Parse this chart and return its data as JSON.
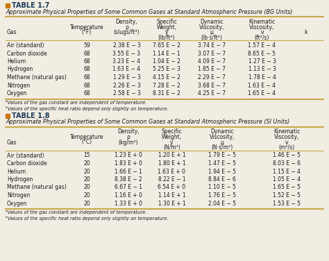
{
  "table17": {
    "title_tag": "TABLE 1.7",
    "subtitle": "Approximate Physical Properties of Some Common Gases at Standard Atmospheric Pressure (BG Units)",
    "col_headers_line1": [
      "",
      "",
      "Density,",
      "Specific",
      "Dynamic",
      "Kinematic",
      ""
    ],
    "col_headers_line2": [
      "",
      "Temperature",
      "ρ",
      "Weight,",
      "Viscosity,",
      "Viscosity,",
      ""
    ],
    "col_headers_line3": [
      "Gas",
      "(°F)",
      "(slugs/ft³)",
      "γ",
      "μ",
      "ν",
      "k"
    ],
    "col_headers_line4": [
      "",
      "",
      "",
      "(lb/ft³)",
      "(lb·s/ft²)",
      "(ft²/s)",
      ""
    ],
    "rows": [
      [
        "Air (standard)",
        "59",
        "2.38 E − 3",
        "7.65 E − 2",
        "3.74 E − 7",
        "1.57 E − 4",
        ""
      ],
      [
        "Carbon dioxide",
        "68",
        "3.55 E − 3",
        "1.14 E − 1",
        "3.07 E − 7",
        "8.65 E − 5",
        ""
      ],
      [
        "Helium",
        "68",
        "3.23 E − 4",
        "1.04 E − 2",
        "4.09 E − 7",
        "1.27 E − 3",
        ""
      ],
      [
        "Hydrogen",
        "68",
        "1.63 E − 4",
        "5.25 E − 3",
        "1.85 E − 7",
        "1.13 E − 3",
        ""
      ],
      [
        "Methane (natural gas)",
        "68",
        "1.29 E − 3",
        "4.15 E − 2",
        "2.29 E − 7",
        "1.78 E − 4",
        ""
      ],
      [
        "Nitrogen",
        "68",
        "2.26 E − 3",
        "7.28 E − 2",
        "3.68 E − 7",
        "1.63 E − 4",
        ""
      ],
      [
        "Oxygen",
        "68",
        "2.58 E − 3",
        "8.31 E − 2",
        "4.25 E − 7",
        "1.65 E − 4",
        ""
      ]
    ],
    "footnotes": [
      "ᵃValues of the gas constant are independent of temperature.",
      "ᵇValues of the specific heat ratio depend only slightly on temperature."
    ]
  },
  "table18": {
    "title_tag": "TABLE 1.8",
    "subtitle": "Approximate Physical Properties of Some Common Gases at Standard Atmospheric Pressure (SI Units)",
    "col_headers_line1": [
      "",
      "",
      "Density,",
      "Specific",
      "Dynamic",
      "Kinematic"
    ],
    "col_headers_line2": [
      "",
      "Temperature",
      "ρ",
      "Weight,",
      "Viscosity,",
      "Viscosity,"
    ],
    "col_headers_line3": [
      "Gas",
      "(°C)",
      "(kg/m³)",
      "γ",
      "μ",
      "ν"
    ],
    "col_headers_line4": [
      "",
      "",
      "",
      "(N/m³)",
      "(N·s/m²)",
      "(m²/s)"
    ],
    "rows": [
      [
        "Air (standard)",
        "15",
        "1.23 E + 0",
        "1.20 E + 1",
        "1.79 E − 5",
        "1.46 E − 5"
      ],
      [
        "Carbon dioxide",
        "20",
        "1.83 E + 0",
        "1.80 E + 1",
        "1.47 E − 5",
        "8.03 E − 6"
      ],
      [
        "Helium",
        "20",
        "1.66 E − 1",
        "1.63 E + 0",
        "1.94 E − 5",
        "1.15 E − 4"
      ],
      [
        "Hydrogen",
        "20",
        "8.38 E − 2",
        "8.22 E − 1",
        "8.84 E − 6",
        "1.05 E − 4"
      ],
      [
        "Methane (natural gas)",
        "20",
        "6.67 E − 1",
        "6.54 E + 0",
        "1.10 E − 5",
        "1.65 E − 5"
      ],
      [
        "Nitrogen",
        "20",
        "1.16 E + 0",
        "1.14 E + 1",
        "1.76 E − 5",
        "1.52 E − 5"
      ],
      [
        "Oxygen",
        "20",
        "1.33 E + 0",
        "1.30 E + 1",
        "2.04 E − 5",
        "1.53 E − 5"
      ]
    ],
    "footnotes": [
      "ᵃValues of the gas constant are independent of temperature.",
      "ᵇValues of the specific heat ratio depend only slightly on temperature."
    ]
  },
  "bg_color": "#f2ede3",
  "line_color": "#c8a84b",
  "text_color": "#1a1a1a",
  "tag_box_color": "#c8780a",
  "title_color": "#1a3a5c"
}
